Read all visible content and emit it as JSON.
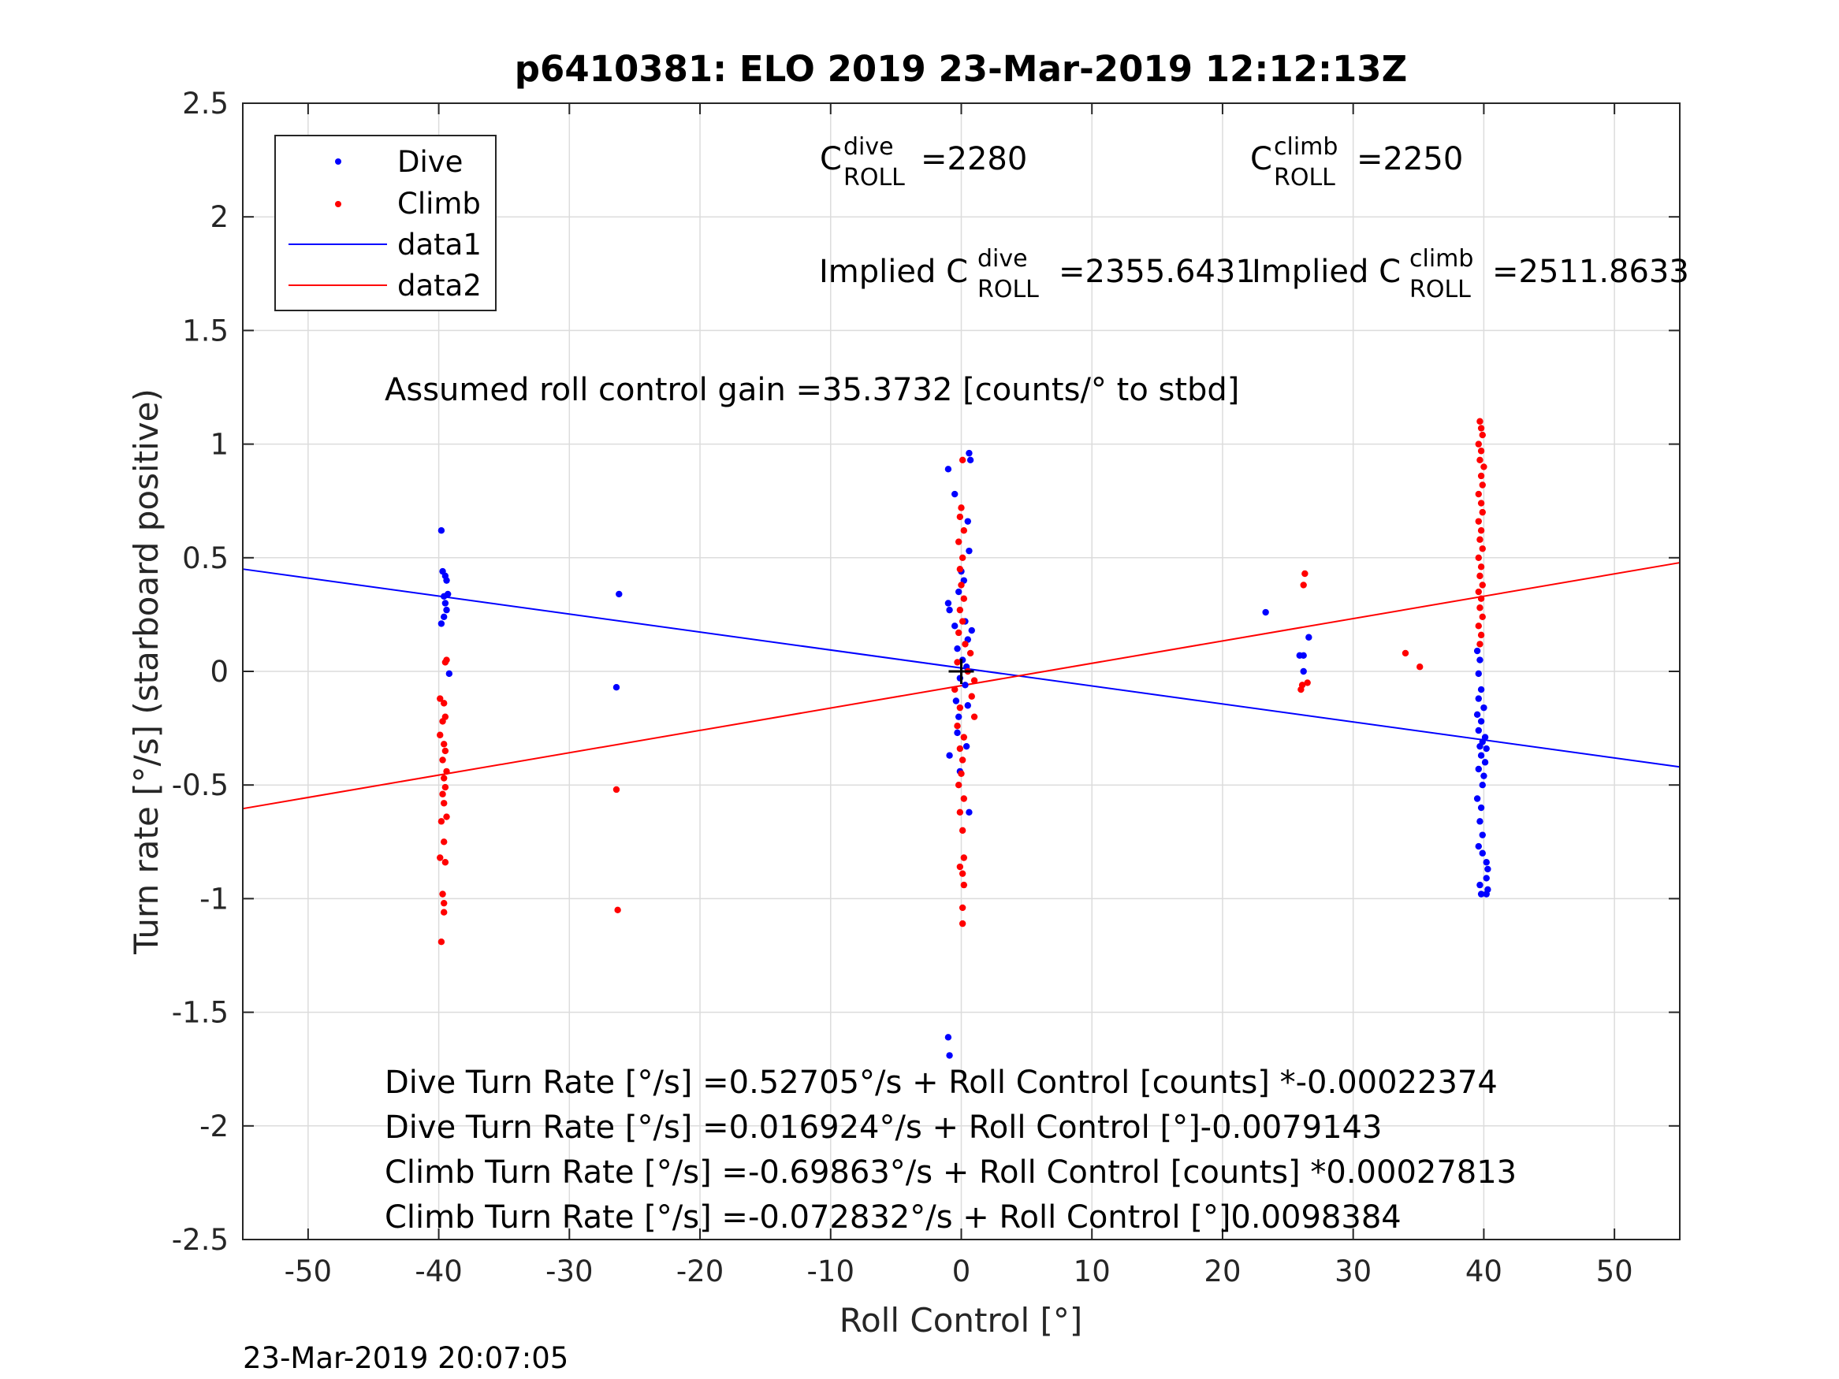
{
  "chart_data": {
    "type": "scatter",
    "title": "p6410381: ELO 2019 23-Mar-2019 12:12:13Z",
    "xlabel": "Roll Control [°]",
    "ylabel": "Turn rate [°/s] (starboard positive)",
    "xlim": [
      -55,
      55
    ],
    "ylim": [
      -2.5,
      2.5
    ],
    "xticks": [
      -50,
      -40,
      -30,
      -20,
      -10,
      0,
      10,
      20,
      30,
      40,
      50
    ],
    "yticks": [
      -2.5,
      -2,
      -1.5,
      -1,
      -0.5,
      0,
      0.5,
      1,
      1.5,
      2,
      2.5
    ],
    "grid": true,
    "legend_position": "top-left",
    "colors": {
      "dive": "#0000ff",
      "climb": "#ff0000",
      "marker": "#000000"
    },
    "series": [
      {
        "name": "Dive",
        "style": "points",
        "points": [
          [
            -39.8,
            0.62
          ],
          [
            -39.7,
            0.44
          ],
          [
            -39.5,
            0.42
          ],
          [
            -39.4,
            0.4
          ],
          [
            -39.6,
            0.33
          ],
          [
            -39.3,
            0.34
          ],
          [
            -39.5,
            0.3
          ],
          [
            -39.4,
            0.27
          ],
          [
            -39.8,
            0.21
          ],
          [
            -39.6,
            0.24
          ],
          [
            -39.2,
            -0.01
          ],
          [
            -26.2,
            0.34
          ],
          [
            -26.4,
            -0.07
          ],
          [
            -1.0,
            0.89
          ],
          [
            -0.5,
            0.78
          ],
          [
            0.6,
            0.96
          ],
          [
            0.7,
            0.93
          ],
          [
            0.5,
            0.66
          ],
          [
            0.6,
            0.53
          ],
          [
            0.0,
            0.44
          ],
          [
            0.2,
            0.4
          ],
          [
            -0.2,
            0.35
          ],
          [
            -1.0,
            0.3
          ],
          [
            -0.9,
            0.27
          ],
          [
            -0.5,
            0.2
          ],
          [
            0.3,
            0.22
          ],
          [
            0.5,
            0.14
          ],
          [
            0.8,
            0.18
          ],
          [
            -0.3,
            0.1
          ],
          [
            0.1,
            0.05
          ],
          [
            0.4,
            0.02
          ],
          [
            -0.1,
            -0.03
          ],
          [
            0.3,
            -0.06
          ],
          [
            -0.4,
            -0.13
          ],
          [
            0.5,
            -0.15
          ],
          [
            -0.2,
            -0.2
          ],
          [
            -0.3,
            -0.27
          ],
          [
            0.4,
            -0.33
          ],
          [
            -0.9,
            -0.37
          ],
          [
            -0.1,
            -0.44
          ],
          [
            0.6,
            -0.62
          ],
          [
            -1.0,
            -1.61
          ],
          [
            -0.9,
            -1.69
          ],
          [
            23.3,
            0.26
          ],
          [
            25.9,
            0.07
          ],
          [
            26.2,
            0.07
          ],
          [
            26.6,
            0.15
          ],
          [
            26.2,
            0.0
          ],
          [
            39.5,
            0.09
          ],
          [
            39.7,
            0.05
          ],
          [
            39.6,
            -0.01
          ],
          [
            39.8,
            -0.08
          ],
          [
            39.6,
            -0.12
          ],
          [
            40.0,
            -0.16
          ],
          [
            39.5,
            -0.19
          ],
          [
            39.8,
            -0.22
          ],
          [
            39.6,
            -0.26
          ],
          [
            40.1,
            -0.29
          ],
          [
            39.9,
            -0.31
          ],
          [
            39.7,
            -0.33
          ],
          [
            40.2,
            -0.34
          ],
          [
            39.8,
            -0.37
          ],
          [
            40.1,
            -0.4
          ],
          [
            39.6,
            -0.43
          ],
          [
            40.0,
            -0.46
          ],
          [
            39.9,
            -0.5
          ],
          [
            39.5,
            -0.56
          ],
          [
            39.8,
            -0.6
          ],
          [
            39.7,
            -0.66
          ],
          [
            39.9,
            -0.72
          ],
          [
            39.6,
            -0.77
          ],
          [
            39.9,
            -0.8
          ],
          [
            40.2,
            -0.84
          ],
          [
            40.3,
            -0.87
          ],
          [
            40.2,
            -0.91
          ],
          [
            39.7,
            -0.94
          ],
          [
            40.3,
            -0.96
          ],
          [
            39.8,
            -0.98
          ],
          [
            40.2,
            -0.98
          ]
        ]
      },
      {
        "name": "Climb",
        "style": "points",
        "points": [
          [
            -39.4,
            0.05
          ],
          [
            -39.5,
            0.04
          ],
          [
            -39.9,
            -0.12
          ],
          [
            -39.6,
            -0.14
          ],
          [
            -39.5,
            -0.2
          ],
          [
            -39.7,
            -0.22
          ],
          [
            -39.9,
            -0.28
          ],
          [
            -39.6,
            -0.32
          ],
          [
            -39.5,
            -0.35
          ],
          [
            -39.7,
            -0.39
          ],
          [
            -39.4,
            -0.44
          ],
          [
            -39.6,
            -0.47
          ],
          [
            -39.5,
            -0.51
          ],
          [
            -39.7,
            -0.54
          ],
          [
            -39.6,
            -0.58
          ],
          [
            -39.4,
            -0.64
          ],
          [
            -39.8,
            -0.66
          ],
          [
            -39.6,
            -0.75
          ],
          [
            -39.9,
            -0.82
          ],
          [
            -39.5,
            -0.84
          ],
          [
            -39.7,
            -0.98
          ],
          [
            -39.6,
            -1.02
          ],
          [
            -39.6,
            -1.06
          ],
          [
            -39.8,
            -1.19
          ],
          [
            -26.4,
            -0.52
          ],
          [
            -26.3,
            -1.05
          ],
          [
            0.1,
            0.93
          ],
          [
            0.0,
            0.72
          ],
          [
            -0.1,
            0.68
          ],
          [
            0.2,
            0.62
          ],
          [
            -0.2,
            0.57
          ],
          [
            0.1,
            0.5
          ],
          [
            -0.1,
            0.45
          ],
          [
            0.0,
            0.38
          ],
          [
            0.2,
            0.32
          ],
          [
            -0.1,
            0.27
          ],
          [
            0.1,
            0.22
          ],
          [
            -0.2,
            0.17
          ],
          [
            0.3,
            0.12
          ],
          [
            0.7,
            0.08
          ],
          [
            -0.3,
            0.04
          ],
          [
            0.5,
            0.0
          ],
          [
            1.0,
            -0.04
          ],
          [
            -0.5,
            -0.08
          ],
          [
            0.8,
            -0.11
          ],
          [
            -0.1,
            -0.16
          ],
          [
            1.0,
            -0.2
          ],
          [
            -0.3,
            -0.24
          ],
          [
            0.2,
            -0.29
          ],
          [
            -0.1,
            -0.34
          ],
          [
            0.1,
            -0.39
          ],
          [
            0.0,
            -0.45
          ],
          [
            -0.2,
            -0.5
          ],
          [
            0.2,
            -0.56
          ],
          [
            -0.1,
            -0.62
          ],
          [
            0.1,
            -0.7
          ],
          [
            0.2,
            -0.82
          ],
          [
            -0.1,
            -0.86
          ],
          [
            0.1,
            -0.89
          ],
          [
            0.2,
            -0.94
          ],
          [
            0.1,
            -1.04
          ],
          [
            0.1,
            -1.11
          ],
          [
            26.3,
            0.43
          ],
          [
            26.2,
            0.38
          ],
          [
            26.1,
            -0.06
          ],
          [
            26.5,
            -0.05
          ],
          [
            26.0,
            -0.08
          ],
          [
            34.0,
            0.08
          ],
          [
            35.1,
            0.02
          ],
          [
            39.7,
            1.1
          ],
          [
            39.8,
            1.07
          ],
          [
            39.9,
            1.04
          ],
          [
            39.6,
            1.0
          ],
          [
            39.8,
            0.97
          ],
          [
            39.7,
            0.93
          ],
          [
            40.0,
            0.9
          ],
          [
            39.8,
            0.86
          ],
          [
            39.9,
            0.82
          ],
          [
            39.6,
            0.78
          ],
          [
            39.8,
            0.74
          ],
          [
            39.9,
            0.7
          ],
          [
            39.6,
            0.66
          ],
          [
            39.8,
            0.62
          ],
          [
            39.7,
            0.58
          ],
          [
            39.9,
            0.54
          ],
          [
            39.6,
            0.5
          ],
          [
            39.8,
            0.46
          ],
          [
            39.7,
            0.42
          ],
          [
            39.9,
            0.38
          ],
          [
            39.6,
            0.35
          ],
          [
            39.8,
            0.32
          ],
          [
            39.7,
            0.28
          ],
          [
            39.9,
            0.24
          ],
          [
            39.6,
            0.2
          ],
          [
            39.8,
            0.16
          ],
          [
            39.7,
            0.12
          ]
        ]
      },
      {
        "name": "data1",
        "style": "line",
        "points": [
          [
            -55,
            0.4501
          ],
          [
            55,
            -0.4204
          ]
        ]
      },
      {
        "name": "data2",
        "style": "line",
        "points": [
          [
            -55,
            -0.604
          ],
          [
            55,
            0.4783
          ]
        ]
      }
    ],
    "origin_marker": {
      "x": 0,
      "y": 0
    },
    "annotations": {
      "c_dive": {
        "base": "C",
        "sup": "dive",
        "sub": "ROLL",
        "value": "=2280"
      },
      "c_climb": {
        "base": "C",
        "sup": "climb",
        "sub": "ROLL",
        "value": "=2250"
      },
      "implied_dive": {
        "base": "Implied C",
        "sup": "dive",
        "sub": "ROLL",
        "value": "=2355.6431"
      },
      "implied_climb": {
        "base": "Implied C",
        "sup": "climb",
        "sub": "ROLL",
        "value": "=2511.8633"
      },
      "gain": "Assumed roll control gain =35.3732 [counts/° to stbd]",
      "eq1": "Dive Turn Rate [°/s] =0.52705°/s + Roll Control [counts] *-0.00022374",
      "eq2": "Dive Turn Rate [°/s] =0.016924°/s + Roll Control [°]-0.0079143",
      "eq3": "Climb Turn Rate [°/s] =-0.69863°/s + Roll Control [counts] *0.00027813",
      "eq4": "Climb Turn Rate [°/s] =-0.072832°/s + Roll Control [°]0.0098384"
    },
    "timestamp": "23-Mar-2019 20:07:05"
  }
}
